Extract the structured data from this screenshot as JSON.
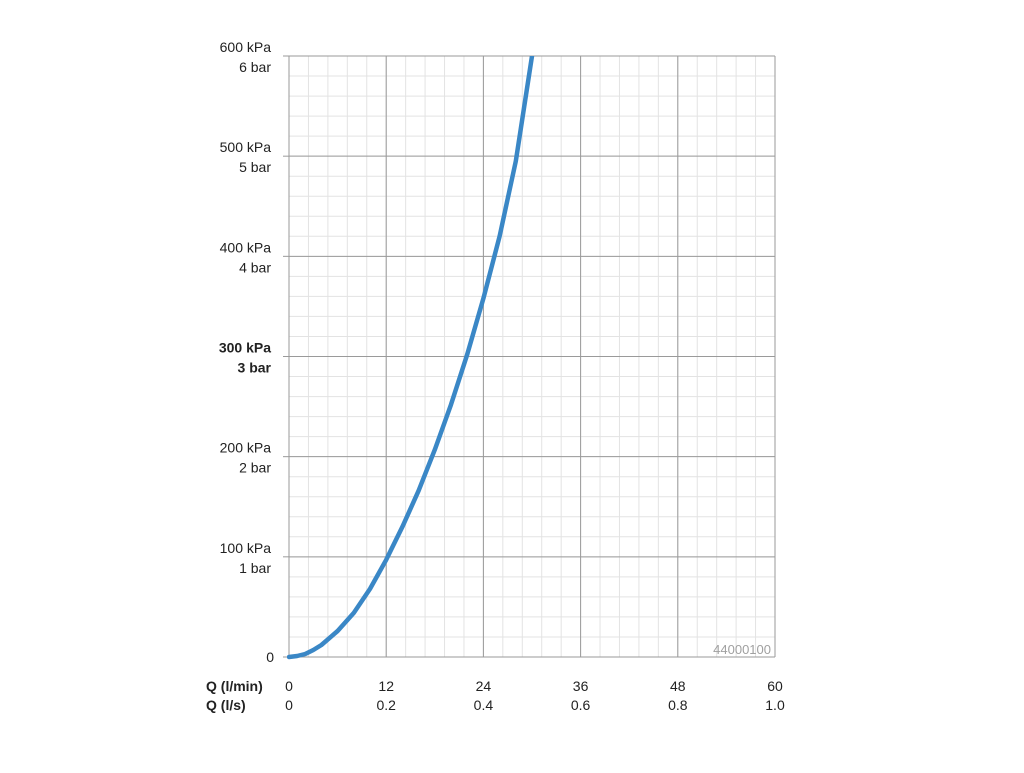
{
  "chart_data": {
    "type": "line",
    "x_label_primary": "Q (l/min)",
    "x_label_secondary": "Q (l/s)",
    "x_ticks_primary": [
      "0",
      "12",
      "24",
      "36",
      "48",
      "60"
    ],
    "x_ticks_secondary": [
      "0",
      "0.2",
      "0.4",
      "0.6",
      "0.8",
      "1.0"
    ],
    "xlim": [
      0,
      60
    ],
    "ylim": [
      0,
      600
    ],
    "y_ticks": [
      {
        "value": 0,
        "kpa": "0",
        "bar": "",
        "bold": false
      },
      {
        "value": 100,
        "kpa": "100 kPa",
        "bar": "1 bar",
        "bold": false
      },
      {
        "value": 200,
        "kpa": "200 kPa",
        "bar": "2 bar",
        "bold": false
      },
      {
        "value": 300,
        "kpa": "300 kPa",
        "bar": "3 bar",
        "bold": true
      },
      {
        "value": 400,
        "kpa": "400 kPa",
        "bar": "4 bar",
        "bold": false
      },
      {
        "value": 500,
        "kpa": "500 kPa",
        "bar": "5 bar",
        "bold": false
      },
      {
        "value": 600,
        "kpa": "600 kPa",
        "bar": "6 bar",
        "bold": false
      }
    ],
    "grid": true,
    "minor_grid_x_step": 2.4,
    "minor_grid_y_step": 20,
    "series": [
      {
        "color": "#3a87c6",
        "x": [
          0,
          1,
          2,
          3,
          4,
          6,
          8,
          10,
          12,
          14,
          16,
          18,
          20,
          22,
          24,
          26,
          28,
          30
        ],
        "y": [
          0,
          1,
          3,
          7,
          12,
          26,
          44,
          68,
          97,
          130,
          166,
          207,
          252,
          302,
          358,
          420,
          495,
          600
        ]
      }
    ],
    "annotation": "44000100"
  }
}
